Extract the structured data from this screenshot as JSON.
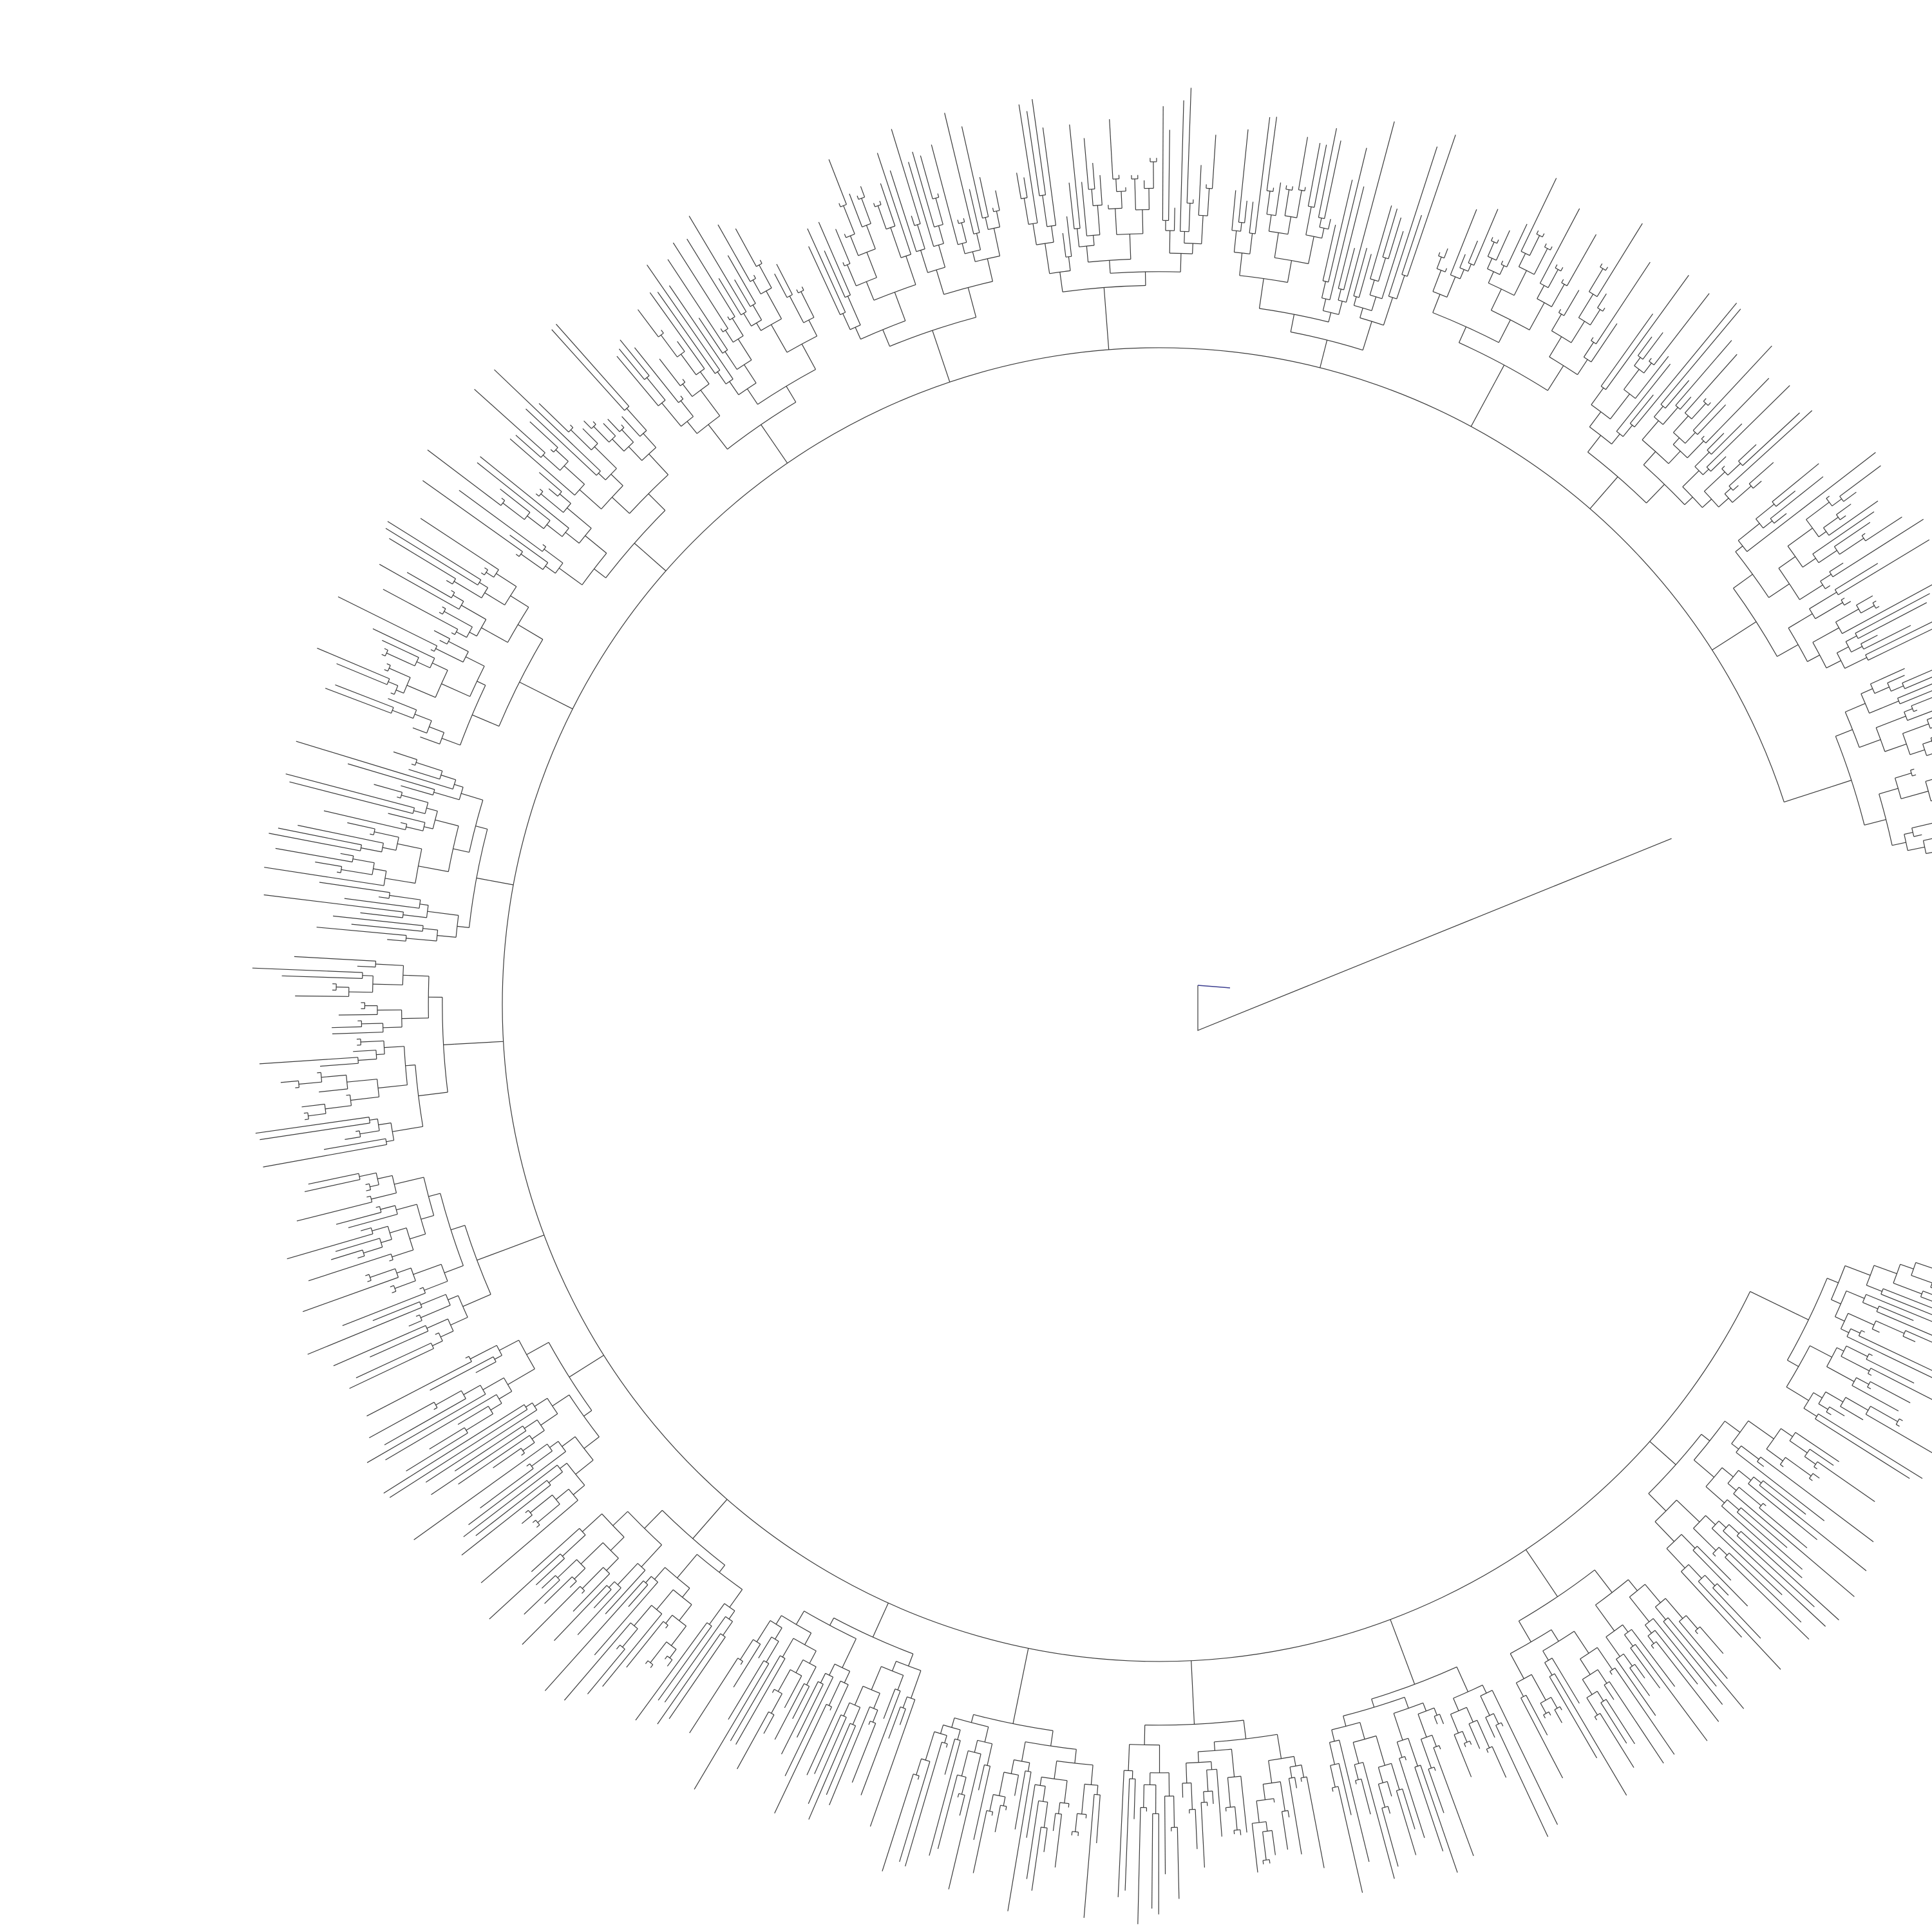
{
  "diagram": {
    "type": "circular-phylogenetic-tree",
    "leaf_count": 720,
    "branch_color": "#3a3a3a",
    "tip_color": "#3b3d8f",
    "background": "#ffffff",
    "inner_ring_gap_start_deg": -18,
    "inner_ring_gap_end_deg": 4,
    "labels_visible": false,
    "corner_note_lines": [
      "",
      ""
    ]
  }
}
